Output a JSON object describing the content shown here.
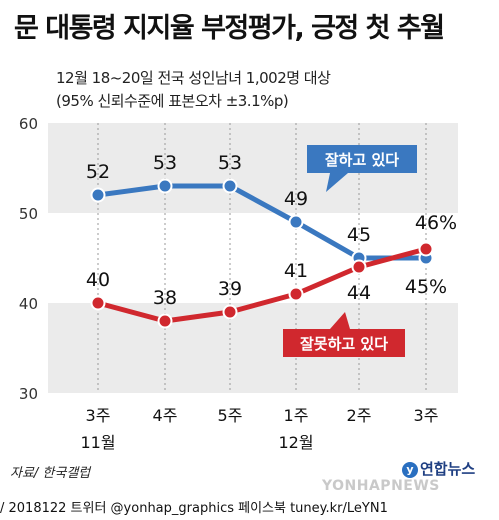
{
  "header": {
    "title": "문 대통령 지지율 부정평가, 긍정 첫 추월",
    "subtitle_line1": "12월 18~20일 전국 성인남녀 1,002명 대상",
    "subtitle_line2": "(95% 신뢰수준에 표본오차 ±3.1%p)"
  },
  "chart_data": {
    "type": "line",
    "x": [
      "11월 3주",
      "11월 4주",
      "11월 5주",
      "12월 1주",
      "12월 2주",
      "12월 3주"
    ],
    "x_tick_labels": [
      {
        "week": "3주",
        "month": "11월"
      },
      {
        "week": "4주",
        "month": ""
      },
      {
        "week": "5주",
        "month": ""
      },
      {
        "week": "1주",
        "month": "12월"
      },
      {
        "week": "2주",
        "month": ""
      },
      {
        "week": "3주",
        "month": ""
      }
    ],
    "y_ticks": [
      30,
      40,
      50,
      60
    ],
    "ylim": [
      30,
      60
    ],
    "grid": "alternating horizontal bands",
    "series": [
      {
        "name": "잘하고 있다",
        "color": "#3a78c0",
        "values": [
          52,
          53,
          53,
          49,
          45,
          45
        ],
        "labels": [
          "52",
          "53",
          "53",
          "49",
          "45",
          "45%"
        ]
      },
      {
        "name": "잘못하고 있다",
        "color": "#d0282e",
        "values": [
          40,
          38,
          39,
          41,
          44,
          46
        ],
        "labels": [
          "40",
          "38",
          "39",
          "41",
          "44",
          "46%"
        ]
      }
    ],
    "legend_placement": "callouts on lines"
  },
  "footer": {
    "source": "자료/ 한국갤럽",
    "logo": "연합뉴스",
    "watermark": "YONHAPNEWS",
    "credit": "/ 2018122 트위터 @yonhap_graphics  페이스북 tuney.kr/LeYN1"
  }
}
